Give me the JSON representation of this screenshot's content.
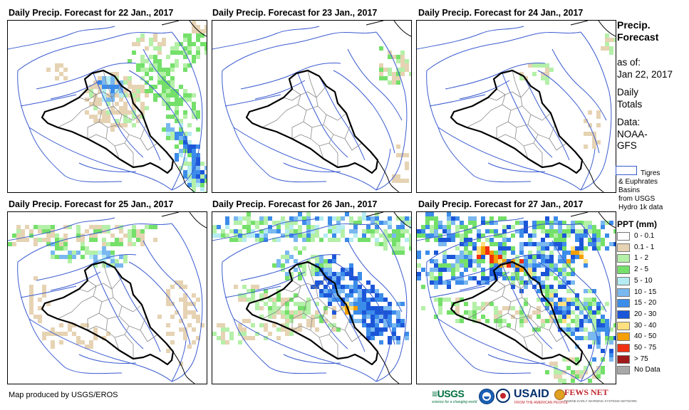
{
  "panels": [
    {
      "title": "Daily Precip. Forecast for 22 Jan., 2017",
      "pattern": "p22"
    },
    {
      "title": "Daily Precip. Forecast for 23 Jan., 2017",
      "pattern": "p23"
    },
    {
      "title": "Daily Precip. Forecast for 24 Jan., 2017",
      "pattern": "p24"
    },
    {
      "title": "Daily Precip. Forecast for 25 Jan., 2017",
      "pattern": "p25"
    },
    {
      "title": "Daily Precip. Forecast for 26 Jan., 2017",
      "pattern": "p26"
    },
    {
      "title": "Daily Precip. Forecast for 27 Jan., 2017",
      "pattern": "p27"
    }
  ],
  "sidebar": {
    "title_line1": "Precip.",
    "title_line2": "Forecast",
    "asof_label": "as of:",
    "asof_date": "Jan 22, 2017",
    "totals_line1": "Daily",
    "totals_line2": "Totals",
    "data_line1": "Data:",
    "data_line2": "NOAA-",
    "data_line3": "GFS",
    "basin_line1": "Tigres",
    "basin_line2": "& Euphrates",
    "basin_line3": "Basins",
    "basin_line4": "from USGS",
    "basin_line5": "Hydro 1k data",
    "basin_color": "#3a5bd0"
  },
  "legend": {
    "title": "PPT (mm)",
    "classes": [
      {
        "label": "0 - 0.1",
        "color": "#ffffff"
      },
      {
        "label": "0.1 - 1",
        "color": "#e6d3b3"
      },
      {
        "label": "1 - 2",
        "color": "#b4f0a8"
      },
      {
        "label": "2 - 5",
        "color": "#74e06a"
      },
      {
        "label": "5 - 10",
        "color": "#b4ecf2"
      },
      {
        "label": "10 - 15",
        "color": "#7ab8f0"
      },
      {
        "label": "15 - 20",
        "color": "#3c8cea"
      },
      {
        "label": "20 - 30",
        "color": "#1c56d8"
      },
      {
        "label": "30 - 40",
        "color": "#ffe080"
      },
      {
        "label": "40 - 50",
        "color": "#f5a000"
      },
      {
        "label": "50 - 75",
        "color": "#f03010"
      },
      {
        "label": "> 75",
        "color": "#a01818"
      },
      {
        "label": "No Data",
        "color": "#a8a8a8"
      }
    ]
  },
  "footer": {
    "credit": "Map produced by USGS/EROS",
    "logo_usgs": "USGS",
    "logo_usgs_tag": "science for a changing world",
    "logo_usaid": "USAID",
    "logo_usaid_tag": "FROM THE AMERICAN PEOPLE",
    "logo_fews": "FEWS NET",
    "logo_fews_tag": "FAMINE EARLY WARNING SYSTEMS NETWORK"
  }
}
